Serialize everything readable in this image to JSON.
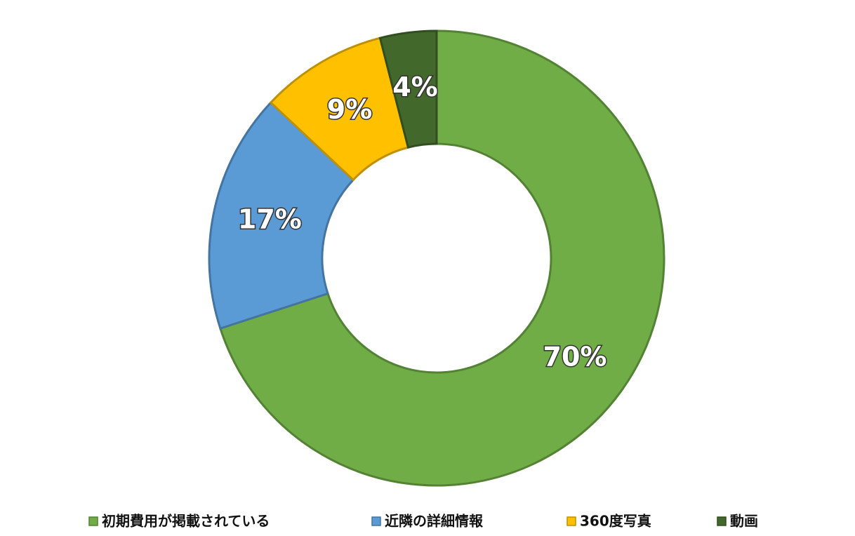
{
  "chart_data": {
    "type": "donut",
    "categories": [
      "初期費用が掲載されている",
      "近隣の詳細情報",
      "360度写真",
      "動画"
    ],
    "values": [
      70,
      17,
      9,
      4
    ],
    "value_labels": [
      "70%",
      "17%",
      "9%",
      "4%"
    ],
    "colors": [
      "#70ad47",
      "#5b9bd5",
      "#ffc000",
      "#43682b"
    ],
    "legend": "bottom"
  }
}
